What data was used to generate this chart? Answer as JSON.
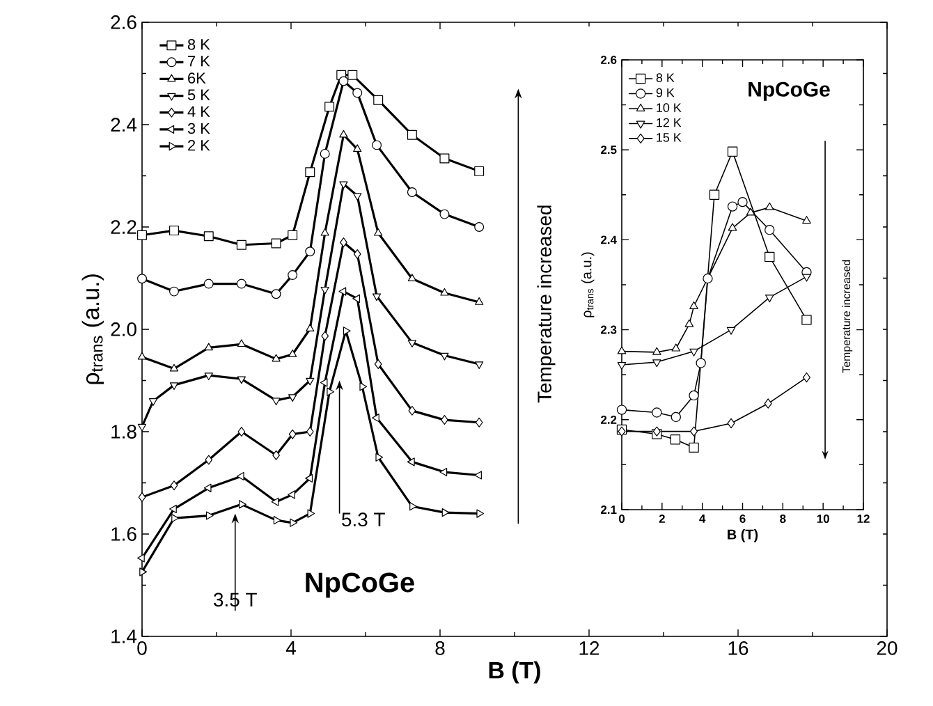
{
  "chart_data": [
    {
      "type": "line",
      "xlabel": "B (T)",
      "ylabel": "ρ$_{trans}$ (a.u.)",
      "xlim": [
        0,
        20
      ],
      "ylim": [
        1.4,
        2.6
      ],
      "xticks": [
        0,
        4,
        8,
        12,
        16,
        20
      ],
      "yticks": [
        1.4,
        1.6,
        1.8,
        {
          "value": 2.0,
          "label": "2.0"
        },
        2.2,
        2.4,
        2.6
      ],
      "legend": "top left",
      "series": [
        {
          "name": "8 K",
          "color": "#000000",
          "marker": "square",
          "x": [
            0,
            0.86,
            1.79,
            2.67,
            3.6,
            4.04,
            4.51,
            5.03,
            5.35,
            5.65,
            6.34,
            7.25,
            8.12,
            9.05
          ],
          "values": [
            2.184,
            2.193,
            2.182,
            2.165,
            2.168,
            2.184,
            2.307,
            2.435,
            2.497,
            2.497,
            2.448,
            2.38,
            2.334,
            2.309
          ]
        },
        {
          "name": "7 K",
          "color": "#000000",
          "marker": "circle",
          "x": [
            0,
            0.86,
            1.79,
            2.67,
            3.6,
            4.04,
            4.51,
            4.91,
            5.41,
            5.78,
            6.3,
            7.25,
            8.12,
            9.05
          ],
          "values": [
            2.099,
            2.074,
            2.089,
            2.089,
            2.069,
            2.106,
            2.152,
            2.343,
            2.485,
            2.462,
            2.36,
            2.268,
            2.225,
            2.2
          ]
        },
        {
          "name": "6K",
          "color": "#000000",
          "marker": "triangle",
          "x": [
            0,
            0.86,
            1.79,
            2.67,
            3.6,
            4.04,
            4.51,
            4.91,
            5.41,
            5.78,
            6.34,
            7.25,
            8.12,
            9.05
          ],
          "values": [
            1.946,
            1.923,
            1.964,
            1.971,
            1.942,
            1.951,
            2.001,
            2.188,
            2.38,
            2.352,
            2.188,
            2.099,
            2.071,
            2.053
          ]
        },
        {
          "name": "5 K",
          "color": "#000000",
          "marker": "triangle-down",
          "x": [
            0,
            0.3,
            0.86,
            1.79,
            2.67,
            3.6,
            4.04,
            4.51,
            4.91,
            5.41,
            5.78,
            6.3,
            7.25,
            8.12,
            9.05
          ],
          "values": [
            1.81,
            1.86,
            1.891,
            1.91,
            1.903,
            1.861,
            1.868,
            1.9,
            2.078,
            2.284,
            2.261,
            2.065,
            1.974,
            1.949,
            1.932
          ]
        },
        {
          "name": "4 K",
          "color": "#000000",
          "marker": "diamond",
          "x": [
            0,
            0.86,
            1.79,
            2.67,
            3.6,
            4.04,
            4.51,
            4.91,
            5.41,
            5.78,
            6.34,
            7.25,
            8.12,
            9.05
          ],
          "values": [
            1.672,
            1.695,
            1.745,
            1.8,
            1.754,
            1.795,
            1.8,
            1.987,
            2.17,
            2.147,
            1.932,
            1.841,
            1.823,
            1.818
          ]
        },
        {
          "name": "3 K",
          "color": "#000000",
          "marker": "triangle-left",
          "x": [
            0,
            0.86,
            1.79,
            2.67,
            3.6,
            4.04,
            4.51,
            4.91,
            5.41,
            5.78,
            6.3,
            7.25,
            8.12,
            9.05
          ],
          "values": [
            1.553,
            1.649,
            1.69,
            1.713,
            1.663,
            1.677,
            1.709,
            1.896,
            2.074,
            2.06,
            1.827,
            1.741,
            1.721,
            1.715
          ]
        },
        {
          "name": "2 K",
          "color": "#000000",
          "marker": "triangle-right",
          "x": [
            0,
            0.86,
            1.79,
            2.67,
            3.6,
            4.04,
            4.51,
            5.03,
            5.47,
            5.91,
            6.34,
            7.25,
            8.12,
            9.05
          ],
          "values": [
            1.526,
            1.631,
            1.636,
            1.658,
            1.627,
            1.622,
            1.64,
            1.878,
            1.997,
            1.888,
            1.75,
            1.654,
            1.642,
            1.64
          ]
        }
      ],
      "annotations": [
        {
          "text": "5.3 T",
          "x": 5.3,
          "y": 1.9
        },
        {
          "text": "3.5 T",
          "x": 2.5,
          "y": 1.64
        },
        "Temperature increased",
        "NpCoGe"
      ]
    },
    {
      "type": "line",
      "xlabel": "B (T)",
      "ylabel": "ρ$_{trans}$ (a.u.)",
      "xlim": [
        0,
        12
      ],
      "ylim": [
        2.1,
        2.6
      ],
      "xticks": [
        0,
        2,
        4,
        6,
        8,
        10,
        12
      ],
      "yticks": [
        2.1,
        2.2,
        2.3,
        2.4,
        2.5,
        2.6
      ],
      "legend": "top left",
      "series": [
        {
          "name": "8 K",
          "color": "#000000",
          "marker": "square",
          "x": [
            0,
            1.74,
            2.66,
            3.58,
            4.6,
            5.5,
            7.34,
            9.18
          ],
          "values": [
            2.189,
            2.184,
            2.178,
            2.169,
            2.45,
            2.498,
            2.381,
            2.311
          ]
        },
        {
          "name": "9 K",
          "color": "#000000",
          "marker": "circle",
          "x": [
            0,
            1.74,
            2.69,
            3.58,
            3.93,
            4.27,
            5.5,
            6.0,
            7.34,
            9.18
          ],
          "values": [
            2.211,
            2.208,
            2.203,
            2.227,
            2.263,
            2.357,
            2.437,
            2.442,
            2.411,
            2.364
          ]
        },
        {
          "name": "10 K",
          "color": "#000000",
          "marker": "triangle",
          "x": [
            0,
            1.74,
            2.69,
            3.35,
            3.58,
            5.5,
            6.4,
            7.34,
            9.18
          ],
          "values": [
            2.276,
            2.275,
            2.279,
            2.306,
            2.326,
            2.413,
            2.43,
            2.436,
            2.421
          ]
        },
        {
          "name": "12 K",
          "color": "#000000",
          "marker": "triangle-down",
          "x": [
            0,
            1.74,
            3.58,
            5.43,
            7.34,
            9.18
          ],
          "values": [
            2.261,
            2.264,
            2.276,
            2.3,
            2.336,
            2.359
          ]
        },
        {
          "name": "15 K",
          "color": "#000000",
          "marker": "diamond",
          "x": [
            0,
            1.74,
            3.58,
            5.43,
            7.27,
            9.18
          ],
          "values": [
            2.187,
            2.187,
            2.187,
            2.196,
            2.218,
            2.247
          ]
        }
      ],
      "annotations": [
        "NpCoGe",
        "Temperature increased"
      ]
    }
  ]
}
